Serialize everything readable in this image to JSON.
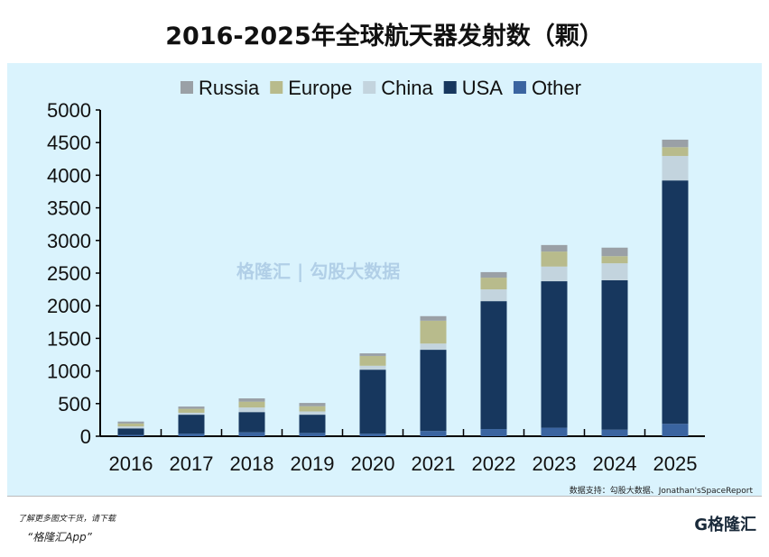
{
  "chart_data": {
    "type": "bar",
    "stacked": true,
    "title": "2016-2025年全球航天器发射数（颗）",
    "categories": [
      "2016",
      "2017",
      "2018",
      "2019",
      "2020",
      "2021",
      "2022",
      "2023",
      "2024",
      "2025"
    ],
    "series": [
      {
        "name": "Other",
        "color": "#3a64a0",
        "values": [
          20,
          40,
          60,
          50,
          40,
          80,
          110,
          130,
          100,
          190
        ]
      },
      {
        "name": "USA",
        "color": "#17375e",
        "values": [
          100,
          290,
          310,
          280,
          980,
          1245,
          1960,
          2245,
          2290,
          3730
        ]
      },
      {
        "name": "China",
        "color": "#c3d4de",
        "values": [
          30,
          30,
          70,
          50,
          60,
          95,
          180,
          225,
          260,
          375
        ]
      },
      {
        "name": "Europe",
        "color": "#b8bb8c",
        "values": [
          45,
          60,
          90,
          80,
          150,
          350,
          180,
          230,
          110,
          135
        ]
      },
      {
        "name": "Russia",
        "color": "#9aa0a6",
        "values": [
          30,
          35,
          50,
          50,
          40,
          70,
          85,
          100,
          130,
          115
        ]
      }
    ],
    "legend_order": [
      "Russia",
      "Europe",
      "China",
      "USA",
      "Other"
    ],
    "legend_position": "top",
    "ylim": [
      0,
      5000
    ],
    "yticks": [
      0,
      500,
      1000,
      1500,
      2000,
      2500,
      3000,
      3500,
      4000,
      4500,
      5000
    ],
    "grid": false
  },
  "source": "数据支持：勾股大数据、Jonathan'sSpaceReport",
  "watermark": "格隆汇 | 勾股大数据",
  "promo_line1": "了解更多图文干货，请下载",
  "promo_line2": "“格隆汇App”",
  "logo": "G格隆汇"
}
